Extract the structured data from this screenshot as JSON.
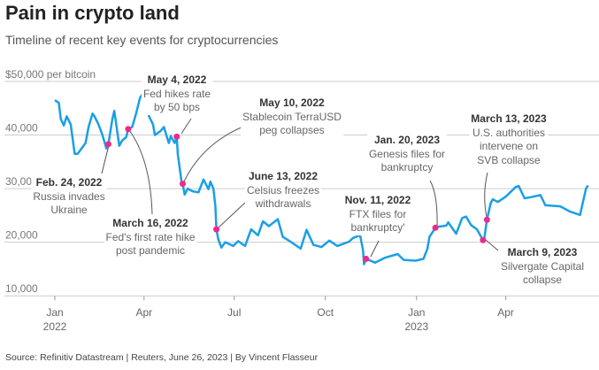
{
  "header": {
    "title": "Pain in crypto land",
    "subtitle": "Timeline of recent key events for cryptocurrencies"
  },
  "source": "Source: Refinitiv Datastream | Reuters, June 26, 2023 | By Vincent Flasseur",
  "colors": {
    "line": "#1a9fe6",
    "event": "#ee2a8b",
    "grid": "#cccccc"
  },
  "chart_data": {
    "type": "line",
    "title": "Pain in crypto land",
    "ylabel": "$ per bitcoin",
    "ylim": [
      10000,
      50000
    ],
    "yticks": [
      {
        "v": 50000,
        "label": "$50,000 per bitcoin"
      },
      {
        "v": 40000,
        "label": "40,000"
      },
      {
        "v": 30000,
        "label": "30,000"
      },
      {
        "v": 20000,
        "label": "20,000"
      },
      {
        "v": 10000,
        "label": "10,000"
      }
    ],
    "xticks": [
      {
        "date": "2022-01-01",
        "label": "Jan",
        "year": "2022"
      },
      {
        "date": "2022-04-01",
        "label": "Apr"
      },
      {
        "date": "2022-07-01",
        "label": "Jul"
      },
      {
        "date": "2022-10-01",
        "label": "Oct"
      },
      {
        "date": "2023-01-01",
        "label": "Jan",
        "year": "2023"
      },
      {
        "date": "2023-04-01",
        "label": "Apr"
      }
    ],
    "grid": true,
    "series": [
      {
        "name": "Bitcoin price",
        "points": [
          [
            "2022-01-01",
            46500
          ],
          [
            "2022-01-05",
            46000
          ],
          [
            "2022-01-07",
            43000
          ],
          [
            "2022-01-10",
            41800
          ],
          [
            "2022-01-13",
            43500
          ],
          [
            "2022-01-17",
            42000
          ],
          [
            "2022-01-21",
            36500
          ],
          [
            "2022-01-24",
            36500
          ],
          [
            "2022-01-28",
            37500
          ],
          [
            "2022-02-01",
            38500
          ],
          [
            "2022-02-04",
            41500
          ],
          [
            "2022-02-08",
            44000
          ],
          [
            "2022-02-10",
            43500
          ],
          [
            "2022-02-14",
            42000
          ],
          [
            "2022-02-18",
            40000
          ],
          [
            "2022-02-22",
            37500
          ],
          [
            "2022-02-24",
            38300
          ],
          [
            "2022-02-28",
            43000
          ],
          [
            "2022-03-02",
            44500
          ],
          [
            "2022-03-07",
            38000
          ],
          [
            "2022-03-10",
            39000
          ],
          [
            "2022-03-14",
            39600
          ],
          [
            "2022-03-16",
            41100
          ],
          [
            "2022-03-20",
            41500
          ],
          [
            "2022-03-24",
            44000
          ],
          [
            "2022-03-28",
            47000
          ],
          [
            "2022-03-30",
            47500
          ],
          [
            "2022-04-04",
            46500
          ],
          [
            "2022-04-06",
            43500
          ],
          [
            "2022-04-10",
            42000
          ],
          [
            "2022-04-12",
            40000
          ],
          [
            "2022-04-18",
            40800
          ],
          [
            "2022-04-21",
            41500
          ],
          [
            "2022-04-26",
            38500
          ],
          [
            "2022-04-28",
            39800
          ],
          [
            "2022-05-02",
            38500
          ],
          [
            "2022-05-04",
            39700
          ],
          [
            "2022-05-05",
            36500
          ],
          [
            "2022-05-09",
            31000
          ],
          [
            "2022-05-10",
            30900
          ],
          [
            "2022-05-12",
            28900
          ],
          [
            "2022-05-15",
            30000
          ],
          [
            "2022-05-20",
            29500
          ],
          [
            "2022-05-26",
            29300
          ],
          [
            "2022-05-31",
            31700
          ],
          [
            "2022-06-05",
            29900
          ],
          [
            "2022-06-07",
            31300
          ],
          [
            "2022-06-10",
            30000
          ],
          [
            "2022-06-12",
            26800
          ],
          [
            "2022-06-13",
            22400
          ],
          [
            "2022-06-15",
            20500
          ],
          [
            "2022-06-18",
            19000
          ],
          [
            "2022-06-22",
            20000
          ],
          [
            "2022-06-30",
            19300
          ],
          [
            "2022-07-05",
            20200
          ],
          [
            "2022-07-12",
            19300
          ],
          [
            "2022-07-18",
            22400
          ],
          [
            "2022-07-25",
            21300
          ],
          [
            "2022-07-30",
            23900
          ],
          [
            "2022-08-05",
            23000
          ],
          [
            "2022-08-14",
            24300
          ],
          [
            "2022-08-19",
            21000
          ],
          [
            "2022-08-26",
            20200
          ],
          [
            "2022-09-06",
            18800
          ],
          [
            "2022-09-12",
            22300
          ],
          [
            "2022-09-19",
            19500
          ],
          [
            "2022-09-27",
            19100
          ],
          [
            "2022-10-05",
            20300
          ],
          [
            "2022-10-13",
            19300
          ],
          [
            "2022-10-25",
            20100
          ],
          [
            "2022-10-29",
            20800
          ],
          [
            "2022-11-05",
            21300
          ],
          [
            "2022-11-08",
            18500
          ],
          [
            "2022-11-09",
            15900
          ],
          [
            "2022-11-11",
            16900
          ],
          [
            "2022-11-20",
            16200
          ],
          [
            "2022-11-30",
            17100
          ],
          [
            "2022-12-13",
            17800
          ],
          [
            "2022-12-19",
            16700
          ],
          [
            "2022-12-31",
            16550
          ],
          [
            "2023-01-08",
            16900
          ],
          [
            "2023-01-12",
            18800
          ],
          [
            "2023-01-14",
            21000
          ],
          [
            "2023-01-20",
            22700
          ],
          [
            "2023-01-23",
            22900
          ],
          [
            "2023-01-31",
            23100
          ],
          [
            "2023-02-02",
            23700
          ],
          [
            "2023-02-10",
            21600
          ],
          [
            "2023-02-16",
            24500
          ],
          [
            "2023-02-20",
            24800
          ],
          [
            "2023-02-25",
            23200
          ],
          [
            "2023-03-03",
            22400
          ],
          [
            "2023-03-09",
            20400
          ],
          [
            "2023-03-10",
            20200
          ],
          [
            "2023-03-13",
            24200
          ],
          [
            "2023-03-17",
            27400
          ],
          [
            "2023-03-19",
            28000
          ],
          [
            "2023-03-24",
            27500
          ],
          [
            "2023-04-01",
            28500
          ],
          [
            "2023-04-11",
            30300
          ],
          [
            "2023-04-14",
            30500
          ],
          [
            "2023-04-20",
            28200
          ],
          [
            "2023-04-26",
            28400
          ],
          [
            "2023-05-06",
            28800
          ],
          [
            "2023-05-11",
            26900
          ],
          [
            "2023-05-26",
            26700
          ],
          [
            "2023-06-05",
            25700
          ],
          [
            "2023-06-15",
            25100
          ],
          [
            "2023-06-21",
            30000
          ],
          [
            "2023-06-23",
            30600
          ]
        ]
      }
    ],
    "annotations": [
      {
        "date": "2022-02-24",
        "price": 38300,
        "title": "Feb. 24, 2022",
        "lines": [
          "Russia invades",
          "Ukraine"
        ]
      },
      {
        "date": "2022-03-16",
        "price": 41100,
        "title": "March 16, 2022",
        "lines": [
          "Fed's first rate hike",
          "post pandemic"
        ]
      },
      {
        "date": "2022-05-04",
        "price": 39700,
        "title": "May 4, 2022",
        "lines": [
          "Fed hikes rate",
          "by 50 bps"
        ]
      },
      {
        "date": "2022-05-10",
        "price": 30900,
        "title": "May 10, 2022",
        "lines": [
          "Stablecoin TerraUSD",
          "peg collapses"
        ]
      },
      {
        "date": "2022-06-13",
        "price": 22400,
        "title": "June 13, 2022",
        "lines": [
          "Celsius freezes",
          "withdrawals"
        ]
      },
      {
        "date": "2022-11-11",
        "price": 16900,
        "title": "Nov. 11, 2022",
        "lines": [
          "FTX files for",
          "bankruptcy'"
        ]
      },
      {
        "date": "2023-01-20",
        "price": 22700,
        "title": "Jan. 20, 2023",
        "lines": [
          "Genesis files for",
          "bankruptcy"
        ]
      },
      {
        "date": "2023-03-13",
        "price": 24200,
        "title": "March 13, 2023",
        "lines": [
          "U.S. authorities",
          "intervene on",
          "SVB collapse"
        ]
      },
      {
        "date": "2023-03-09",
        "price": 20400,
        "title": "March 9, 2023",
        "lines": [
          "Silvergate Capital",
          "collapse"
        ]
      }
    ]
  }
}
